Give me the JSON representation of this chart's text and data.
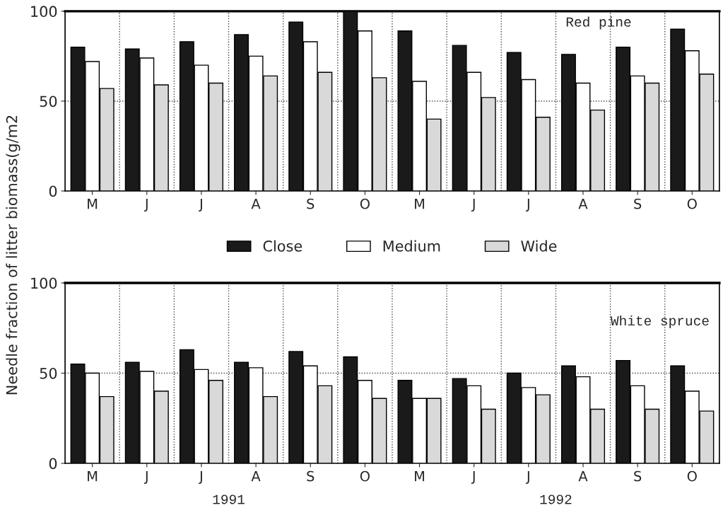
{
  "chart_data": [
    {
      "type": "bar",
      "ylabel": "Needle fraction of litter biomass(g/m2",
      "categories": [
        "M",
        "J",
        "J",
        "A",
        "S",
        "O",
        "M",
        "J",
        "J",
        "A",
        "S",
        "O"
      ],
      "ylim": [
        0,
        100
      ],
      "yticks": [
        0,
        50,
        100
      ],
      "grid": true,
      "legend": "bottom",
      "annotations": [
        "Red pine"
      ],
      "series": [
        {
          "name": "Close",
          "color": "#1a1a1a",
          "values": [
            80,
            79,
            83,
            87,
            94,
            100,
            89,
            81,
            77,
            76,
            80,
            90
          ]
        },
        {
          "name": "Medium",
          "color": "#ffffff",
          "values": [
            72,
            74,
            70,
            75,
            83,
            89,
            61,
            66,
            62,
            60,
            64,
            78
          ]
        },
        {
          "name": "Wide",
          "color": "#d9d9d9",
          "values": [
            57,
            59,
            60,
            64,
            66,
            63,
            40,
            52,
            41,
            45,
            60,
            65
          ]
        }
      ]
    },
    {
      "type": "bar",
      "categories": [
        "M",
        "J",
        "J",
        "A",
        "S",
        "O",
        "M",
        "J",
        "J",
        "A",
        "S",
        "O"
      ],
      "ylim": [
        0,
        100
      ],
      "yticks": [
        0,
        50,
        100
      ],
      "grid": true,
      "annotations": [
        "White spruce",
        "1991",
        "1992"
      ],
      "series": [
        {
          "color": "#1a1a1a",
          "values": [
            55,
            56,
            63,
            56,
            62,
            59,
            46,
            47,
            50,
            54,
            57,
            54
          ]
        },
        {
          "color": "#ffffff",
          "values": [
            50,
            51,
            52,
            53,
            54,
            46,
            36,
            43,
            42,
            48,
            43,
            40
          ]
        },
        {
          "color": "#d9d9d9",
          "values": [
            37,
            40,
            46,
            37,
            43,
            36,
            36,
            30,
            38,
            30,
            30,
            29
          ]
        }
      ]
    }
  ]
}
